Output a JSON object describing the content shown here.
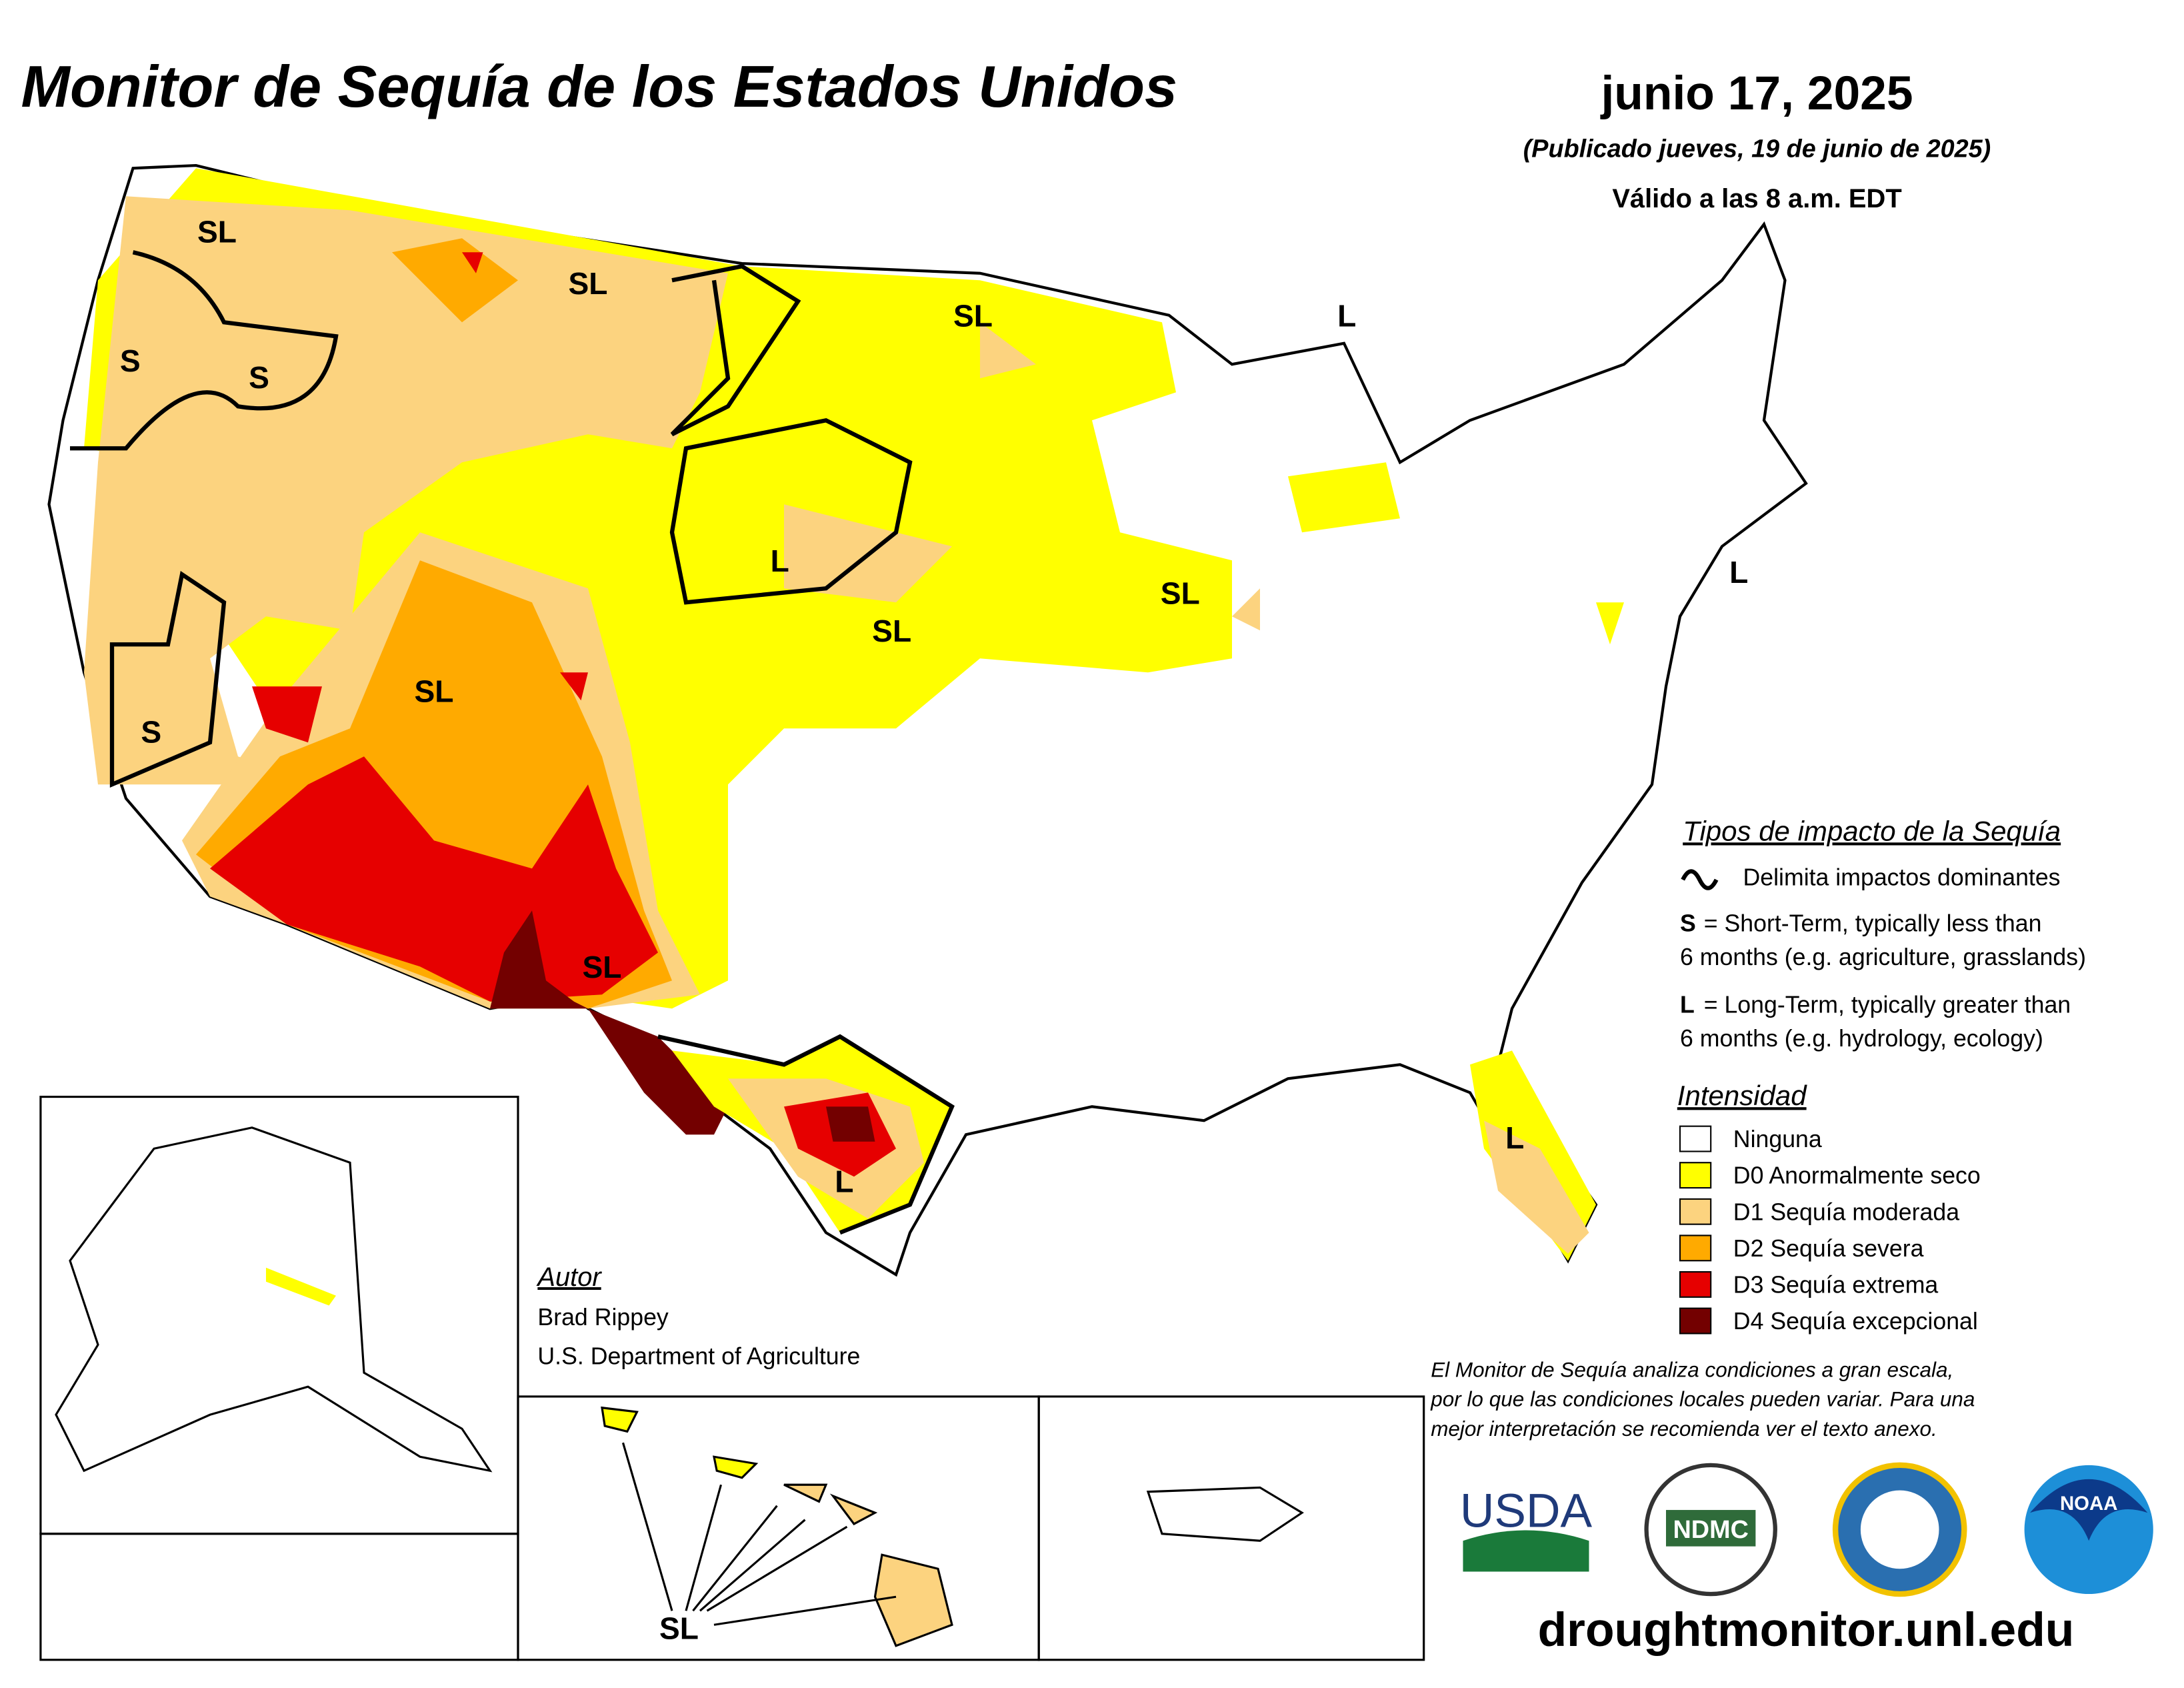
{
  "title": "Monitor de Sequía de los Estados Unidos",
  "date": "junio 17, 2025",
  "published": "(Publicado jueves, 19 de junio de 2025)",
  "valid": "Válido a las 8 a.m. EDT",
  "impact_legend": {
    "title": "Tipos de impacto de la Sequía",
    "delimits": "Delimita impactos dominantes",
    "short_key": "S",
    "short_lines": [
      "= Short-Term, typically less than",
      "6 months (e.g. agriculture, grasslands)"
    ],
    "long_key": "L",
    "long_lines": [
      "= Long-Term, typically greater than",
      "6 months (e.g. hydrology, ecology)"
    ]
  },
  "intensity": {
    "title": "Intensidad",
    "items": [
      "Ninguna",
      "D0 Anormalmente seco",
      "D1 Sequía moderada",
      "D2 Sequía severa",
      "D3 Sequía extrema",
      "D4 Sequía excepcional"
    ]
  },
  "author": {
    "title": "Autor",
    "name": "Brad Rippey",
    "org": "U.S. Department of Agriculture"
  },
  "disclaimer": [
    "El Monitor de Sequía analiza condiciones a gran escala,",
    "por lo que las condiciones locales pueden variar. Para una",
    "mejor interpretación se recomienda ver el texto anexo."
  ],
  "logos": [
    "USDA",
    "NDMC",
    "NOAA"
  ],
  "url": "droughtmonitor.unl.edu",
  "map_labels": [
    "SL",
    "S",
    "S",
    "SL",
    "SL",
    "L",
    "L",
    "SL",
    "SL",
    "SL",
    "S",
    "SL",
    "L",
    "L",
    "L",
    "SL"
  ]
}
